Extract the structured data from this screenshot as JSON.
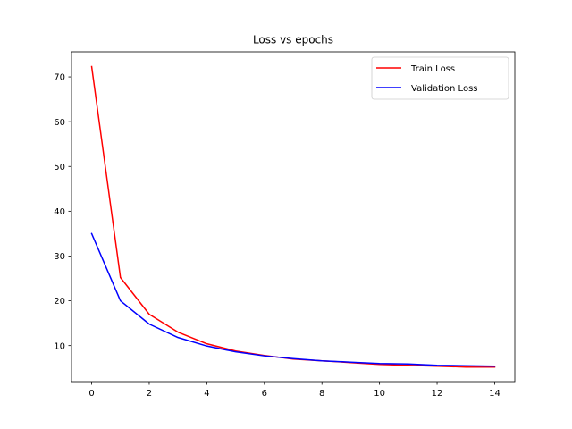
{
  "chart_data": {
    "type": "line",
    "title": "Loss vs epochs",
    "xlabel": "",
    "ylabel": "",
    "x": [
      0,
      1,
      2,
      3,
      4,
      5,
      6,
      7,
      8,
      9,
      10,
      11,
      12,
      13,
      14
    ],
    "series": [
      {
        "name": "Train Loss",
        "color": "#ff0000",
        "values": [
          72.3,
          25.2,
          17.0,
          13.0,
          10.4,
          8.8,
          7.8,
          7.0,
          6.6,
          6.2,
          5.8,
          5.6,
          5.4,
          5.2,
          5.2
        ]
      },
      {
        "name": "Validation Loss",
        "color": "#0000ff",
        "values": [
          35.0,
          20.0,
          14.8,
          11.8,
          9.9,
          8.6,
          7.7,
          7.1,
          6.6,
          6.3,
          6.0,
          5.9,
          5.6,
          5.5,
          5.4
        ]
      }
    ],
    "xticks": [
      0,
      2,
      4,
      6,
      8,
      10,
      12,
      14
    ],
    "yticks": [
      10,
      20,
      30,
      40,
      50,
      60,
      70
    ],
    "xlim": [
      -0.7,
      14.7
    ],
    "ylim": [
      1.95,
      75.6
    ],
    "grid": false,
    "legend_position": "top-right"
  }
}
